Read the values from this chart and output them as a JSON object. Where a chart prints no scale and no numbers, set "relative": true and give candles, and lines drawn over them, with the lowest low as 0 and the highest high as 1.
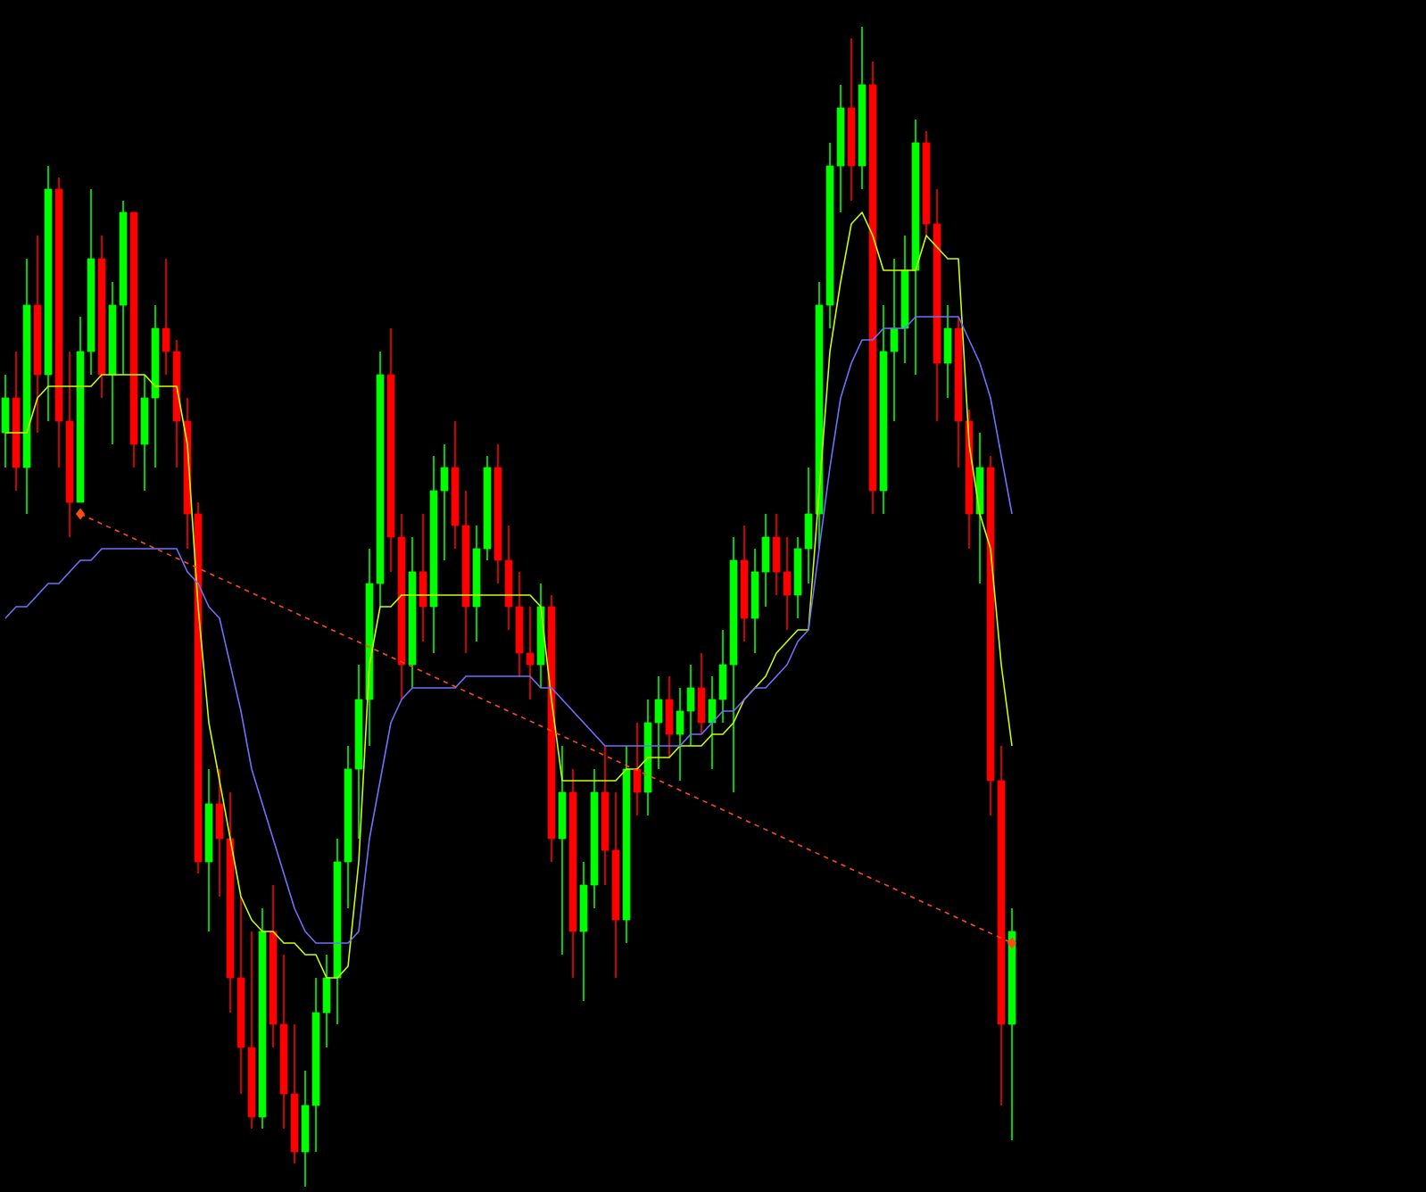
{
  "chart_data": {
    "type": "candlestick",
    "relative": true,
    "categories": [
      null,
      null,
      null,
      null,
      null,
      null,
      null,
      null,
      null,
      null,
      null,
      null,
      null,
      null,
      null,
      null,
      null,
      null,
      null,
      null,
      null,
      null,
      null,
      null,
      null,
      null,
      null,
      null,
      null,
      null,
      null,
      null,
      null,
      null,
      null,
      null,
      null,
      null,
      null,
      null,
      null,
      null,
      null,
      null,
      null,
      null,
      null,
      null,
      null,
      null,
      null,
      null,
      null,
      null,
      null,
      null,
      null,
      null,
      null,
      null,
      null,
      null,
      null,
      null,
      null,
      null,
      null,
      null,
      null,
      null,
      null,
      null,
      null,
      null,
      null,
      null,
      null,
      null,
      null,
      null,
      null,
      null,
      null,
      null,
      null,
      null,
      null,
      null,
      null,
      null,
      null,
      null,
      null,
      null,
      null
    ],
    "ohlc": [
      [
        0.65,
        0.7,
        0.62,
        0.68
      ],
      [
        0.68,
        0.72,
        0.6,
        0.62
      ],
      [
        0.62,
        0.8,
        0.58,
        0.76
      ],
      [
        0.76,
        0.82,
        0.65,
        0.7
      ],
      [
        0.7,
        0.88,
        0.66,
        0.86
      ],
      [
        0.86,
        0.87,
        0.62,
        0.66
      ],
      [
        0.66,
        0.72,
        0.56,
        0.59
      ],
      [
        0.59,
        0.75,
        0.59,
        0.72
      ],
      [
        0.72,
        0.86,
        0.7,
        0.8
      ],
      [
        0.8,
        0.82,
        0.68,
        0.7
      ],
      [
        0.7,
        0.78,
        0.64,
        0.76
      ],
      [
        0.76,
        0.85,
        0.7,
        0.84
      ],
      [
        0.84,
        0.84,
        0.62,
        0.64
      ],
      [
        0.64,
        0.7,
        0.6,
        0.68
      ],
      [
        0.68,
        0.76,
        0.62,
        0.74
      ],
      [
        0.74,
        0.8,
        0.7,
        0.72
      ],
      [
        0.72,
        0.73,
        0.62,
        0.66
      ],
      [
        0.66,
        0.68,
        0.55,
        0.58
      ],
      [
        0.58,
        0.59,
        0.27,
        0.28
      ],
      [
        0.28,
        0.36,
        0.22,
        0.33
      ],
      [
        0.33,
        0.36,
        0.25,
        0.3
      ],
      [
        0.3,
        0.34,
        0.15,
        0.18
      ],
      [
        0.18,
        0.25,
        0.08,
        0.12
      ],
      [
        0.12,
        0.22,
        0.05,
        0.06
      ],
      [
        0.06,
        0.24,
        0.05,
        0.22
      ],
      [
        0.22,
        0.26,
        0.12,
        0.14
      ],
      [
        0.14,
        0.2,
        0.05,
        0.08
      ],
      [
        0.08,
        0.14,
        0.02,
        0.03
      ],
      [
        0.03,
        0.1,
        0.0,
        0.07
      ],
      [
        0.07,
        0.18,
        0.03,
        0.15
      ],
      [
        0.15,
        0.2,
        0.12,
        0.18
      ],
      [
        0.18,
        0.3,
        0.14,
        0.28
      ],
      [
        0.28,
        0.38,
        0.24,
        0.36
      ],
      [
        0.36,
        0.45,
        0.3,
        0.42
      ],
      [
        0.42,
        0.55,
        0.38,
        0.52
      ],
      [
        0.52,
        0.72,
        0.5,
        0.7
      ],
      [
        0.7,
        0.74,
        0.53,
        0.56
      ],
      [
        0.56,
        0.58,
        0.42,
        0.45
      ],
      [
        0.45,
        0.56,
        0.43,
        0.53
      ],
      [
        0.53,
        0.58,
        0.47,
        0.5
      ],
      [
        0.5,
        0.63,
        0.46,
        0.6
      ],
      [
        0.6,
        0.64,
        0.54,
        0.62
      ],
      [
        0.62,
        0.66,
        0.55,
        0.57
      ],
      [
        0.57,
        0.6,
        0.46,
        0.5
      ],
      [
        0.5,
        0.57,
        0.47,
        0.55
      ],
      [
        0.55,
        0.63,
        0.54,
        0.62
      ],
      [
        0.62,
        0.64,
        0.52,
        0.54
      ],
      [
        0.54,
        0.57,
        0.48,
        0.5
      ],
      [
        0.5,
        0.53,
        0.44,
        0.46
      ],
      [
        0.46,
        0.5,
        0.42,
        0.45
      ],
      [
        0.45,
        0.52,
        0.43,
        0.5
      ],
      [
        0.5,
        0.51,
        0.28,
        0.3
      ],
      [
        0.3,
        0.38,
        0.2,
        0.34
      ],
      [
        0.34,
        0.36,
        0.18,
        0.22
      ],
      [
        0.22,
        0.28,
        0.16,
        0.26
      ],
      [
        0.26,
        0.36,
        0.24,
        0.34
      ],
      [
        0.34,
        0.38,
        0.26,
        0.29
      ],
      [
        0.29,
        0.34,
        0.18,
        0.23
      ],
      [
        0.23,
        0.38,
        0.21,
        0.36
      ],
      [
        0.36,
        0.4,
        0.32,
        0.34
      ],
      [
        0.34,
        0.42,
        0.32,
        0.4
      ],
      [
        0.4,
        0.44,
        0.36,
        0.42
      ],
      [
        0.42,
        0.44,
        0.37,
        0.39
      ],
      [
        0.39,
        0.43,
        0.35,
        0.41
      ],
      [
        0.41,
        0.45,
        0.38,
        0.43
      ],
      [
        0.43,
        0.46,
        0.39,
        0.4
      ],
      [
        0.4,
        0.44,
        0.36,
        0.42
      ],
      [
        0.42,
        0.48,
        0.4,
        0.45
      ],
      [
        0.45,
        0.56,
        0.34,
        0.54
      ],
      [
        0.54,
        0.57,
        0.47,
        0.49
      ],
      [
        0.49,
        0.55,
        0.46,
        0.53
      ],
      [
        0.53,
        0.58,
        0.5,
        0.56
      ],
      [
        0.56,
        0.58,
        0.51,
        0.53
      ],
      [
        0.53,
        0.56,
        0.48,
        0.51
      ],
      [
        0.51,
        0.56,
        0.49,
        0.55
      ],
      [
        0.55,
        0.62,
        0.52,
        0.58
      ],
      [
        0.58,
        0.78,
        0.55,
        0.76
      ],
      [
        0.76,
        0.9,
        0.74,
        0.88
      ],
      [
        0.88,
        0.95,
        0.84,
        0.93
      ],
      [
        0.93,
        0.99,
        0.85,
        0.88
      ],
      [
        0.88,
        1.0,
        0.86,
        0.95
      ],
      [
        0.95,
        0.97,
        0.58,
        0.6
      ],
      [
        0.6,
        0.76,
        0.58,
        0.72
      ],
      [
        0.72,
        0.8,
        0.66,
        0.74
      ],
      [
        0.74,
        0.82,
        0.71,
        0.79
      ],
      [
        0.79,
        0.92,
        0.7,
        0.9
      ],
      [
        0.9,
        0.91,
        0.82,
        0.83
      ],
      [
        0.83,
        0.86,
        0.66,
        0.71
      ],
      [
        0.71,
        0.76,
        0.68,
        0.74
      ],
      [
        0.74,
        0.75,
        0.62,
        0.66
      ],
      [
        0.66,
        0.67,
        0.55,
        0.58
      ],
      [
        0.58,
        0.65,
        0.52,
        0.62
      ],
      [
        0.62,
        0.63,
        0.32,
        0.35
      ],
      [
        0.35,
        0.38,
        0.07,
        0.14
      ],
      [
        0.14,
        0.24,
        0.04,
        0.22
      ]
    ],
    "series": [
      {
        "type": "line",
        "color": "#c8ff00",
        "values": [
          0.65,
          0.65,
          0.65,
          0.68,
          0.69,
          0.69,
          0.69,
          0.69,
          0.69,
          0.7,
          0.7,
          0.7,
          0.7,
          0.7,
          0.69,
          0.69,
          0.69,
          0.64,
          0.5,
          0.4,
          0.35,
          0.3,
          0.25,
          0.23,
          0.22,
          0.22,
          0.21,
          0.21,
          0.2,
          0.2,
          0.18,
          0.18,
          0.19,
          0.28,
          0.45,
          0.5,
          0.5,
          0.51,
          0.51,
          0.51,
          0.51,
          0.51,
          0.51,
          0.51,
          0.51,
          0.51,
          0.51,
          0.51,
          0.51,
          0.51,
          0.5,
          0.42,
          0.35,
          0.35,
          0.35,
          0.35,
          0.35,
          0.35,
          0.36,
          0.36,
          0.37,
          0.37,
          0.37,
          0.38,
          0.38,
          0.38,
          0.39,
          0.39,
          0.4,
          0.42,
          0.43,
          0.44,
          0.46,
          0.47,
          0.48,
          0.48,
          0.6,
          0.72,
          0.78,
          0.83,
          0.84,
          0.82,
          0.79,
          0.79,
          0.79,
          0.79,
          0.82,
          0.81,
          0.8,
          0.8,
          0.64,
          0.58,
          0.55,
          0.45,
          0.38
        ]
      },
      {
        "type": "line",
        "color": "#7070ff",
        "values": [
          0.49,
          0.5,
          0.5,
          0.51,
          0.52,
          0.52,
          0.53,
          0.54,
          0.54,
          0.55,
          0.55,
          0.55,
          0.55,
          0.55,
          0.55,
          0.55,
          0.55,
          0.53,
          0.52,
          0.5,
          0.49,
          0.45,
          0.41,
          0.36,
          0.33,
          0.3,
          0.27,
          0.24,
          0.22,
          0.21,
          0.21,
          0.21,
          0.21,
          0.22,
          0.3,
          0.35,
          0.4,
          0.42,
          0.43,
          0.43,
          0.43,
          0.43,
          0.43,
          0.44,
          0.44,
          0.44,
          0.44,
          0.44,
          0.44,
          0.44,
          0.43,
          0.43,
          0.42,
          0.41,
          0.4,
          0.39,
          0.38,
          0.38,
          0.38,
          0.38,
          0.38,
          0.38,
          0.38,
          0.38,
          0.39,
          0.39,
          0.4,
          0.41,
          0.41,
          0.42,
          0.43,
          0.43,
          0.44,
          0.45,
          0.47,
          0.48,
          0.55,
          0.62,
          0.68,
          0.71,
          0.73,
          0.73,
          0.74,
          0.74,
          0.74,
          0.75,
          0.75,
          0.75,
          0.75,
          0.75,
          0.73,
          0.71,
          0.68,
          0.63,
          0.58
        ]
      },
      {
        "type": "line",
        "color": "#ff4a1a",
        "line_style": "dashed",
        "marker": "diamond",
        "values": [
          null,
          null,
          null,
          null,
          null,
          null,
          null,
          0.58,
          null,
          null,
          null,
          null,
          null,
          null,
          null,
          null,
          null,
          null,
          null,
          null,
          null,
          null,
          null,
          null,
          null,
          null,
          null,
          null,
          null,
          null,
          null,
          null,
          null,
          null,
          null,
          null,
          null,
          null,
          null,
          null,
          null,
          null,
          null,
          null,
          null,
          null,
          null,
          null,
          null,
          null,
          null,
          null,
          null,
          null,
          null,
          null,
          null,
          null,
          null,
          null,
          null,
          null,
          null,
          null,
          null,
          null,
          null,
          null,
          null,
          null,
          null,
          null,
          null,
          null,
          null,
          null,
          null,
          null,
          null,
          null,
          null,
          null,
          null,
          null,
          null,
          null,
          null,
          null,
          null,
          null,
          null,
          null,
          null,
          null,
          0.21
        ]
      }
    ]
  }
}
